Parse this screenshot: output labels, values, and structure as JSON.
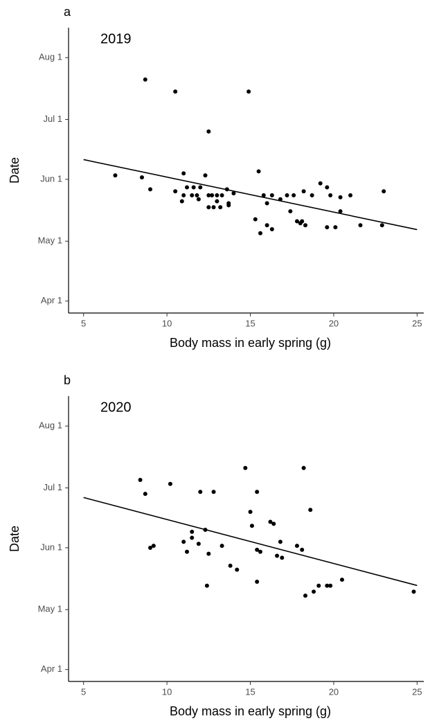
{
  "chart_data": [
    {
      "type": "scatter",
      "panel_label": "a",
      "annotation": "2019",
      "x_label": "Body mass in early spring (g)",
      "y_label": "Date",
      "color": "#000000",
      "xlim": [
        4.1,
        25.4
      ],
      "ylim": [
        85,
        228
      ],
      "xticks": [
        5,
        10,
        15,
        20,
        25
      ],
      "yticks": [
        {
          "value": 91,
          "label": "Apr 1"
        },
        {
          "value": 121,
          "label": "May 1"
        },
        {
          "value": 152,
          "label": "Jun 1"
        },
        {
          "value": 182,
          "label": "Jul 1"
        },
        {
          "value": 213,
          "label": "Aug 1"
        }
      ],
      "x": [
        6.9,
        8.7,
        8.5,
        9.0,
        10.5,
        10.5,
        11.0,
        10.9,
        11.0,
        11.2,
        11.5,
        11.6,
        11.8,
        12.0,
        11.9,
        12.3,
        12.5,
        12.5,
        12.5,
        12.7,
        12.8,
        13.0,
        13.0,
        13.2,
        13.3,
        13.6,
        13.7,
        13.7,
        14.0,
        14.9,
        15.5,
        15.3,
        15.6,
        15.8,
        16.0,
        16.0,
        16.3,
        16.3,
        16.8,
        17.2,
        17.4,
        17.6,
        17.8,
        18.0,
        18.1,
        18.2,
        18.3,
        18.7,
        19.2,
        19.6,
        19.6,
        19.8,
        20.1,
        20.4,
        20.4,
        21.0,
        21.6,
        22.9,
        23.0
      ],
      "values": [
        154,
        202,
        153,
        147,
        196,
        146,
        155,
        141,
        144,
        148,
        144,
        148,
        144,
        148,
        142,
        154,
        176,
        144,
        138,
        144,
        138,
        144,
        141,
        138,
        144,
        147,
        140,
        139,
        145,
        196,
        156,
        132,
        125,
        144,
        140,
        129,
        144,
        127,
        142,
        144,
        136,
        144,
        131,
        130,
        131,
        146,
        129,
        144,
        150,
        148,
        128,
        144,
        128,
        136,
        143,
        144,
        129,
        129,
        146
      ],
      "trend_line": {
        "x": [
          5,
          25
        ],
        "values": [
          161.9,
          126.8
        ]
      }
    },
    {
      "type": "scatter",
      "panel_label": "b",
      "annotation": "2020",
      "x_label": "Body mass in early spring (g)",
      "y_label": "Date",
      "color": "#000000",
      "xlim": [
        4.1,
        25.4
      ],
      "ylim": [
        85,
        228
      ],
      "xticks": [
        5,
        10,
        15,
        20,
        25
      ],
      "yticks": [
        {
          "value": 91,
          "label": "Apr 1"
        },
        {
          "value": 121,
          "label": "May 1"
        },
        {
          "value": 152,
          "label": "Jun 1"
        },
        {
          "value": 182,
          "label": "Jul 1"
        },
        {
          "value": 213,
          "label": "Aug 1"
        }
      ],
      "x": [
        8.4,
        8.7,
        9.0,
        9.2,
        10.2,
        11.0,
        11.2,
        11.5,
        11.5,
        11.9,
        12.0,
        12.3,
        12.5,
        12.4,
        12.8,
        13.3,
        13.8,
        14.2,
        14.7,
        15.0,
        15.1,
        15.4,
        15.4,
        15.4,
        15.6,
        16.2,
        16.4,
        16.6,
        16.8,
        16.9,
        17.8,
        18.1,
        18.2,
        18.3,
        18.6,
        18.8,
        19.1,
        19.6,
        19.8,
        20.5,
        24.8
      ],
      "values": [
        186,
        179,
        152,
        153,
        184,
        155,
        150,
        160,
        157,
        154,
        180,
        161,
        149,
        133,
        180,
        153,
        143,
        141,
        192,
        170,
        163,
        180,
        135,
        151,
        150,
        165,
        164,
        148,
        155,
        147,
        153,
        151,
        192,
        128,
        171,
        130,
        133,
        133,
        133,
        136,
        130
      ],
      "trend_line": {
        "x": [
          5,
          25
        ],
        "values": [
          177.2,
          133.1
        ]
      }
    }
  ]
}
